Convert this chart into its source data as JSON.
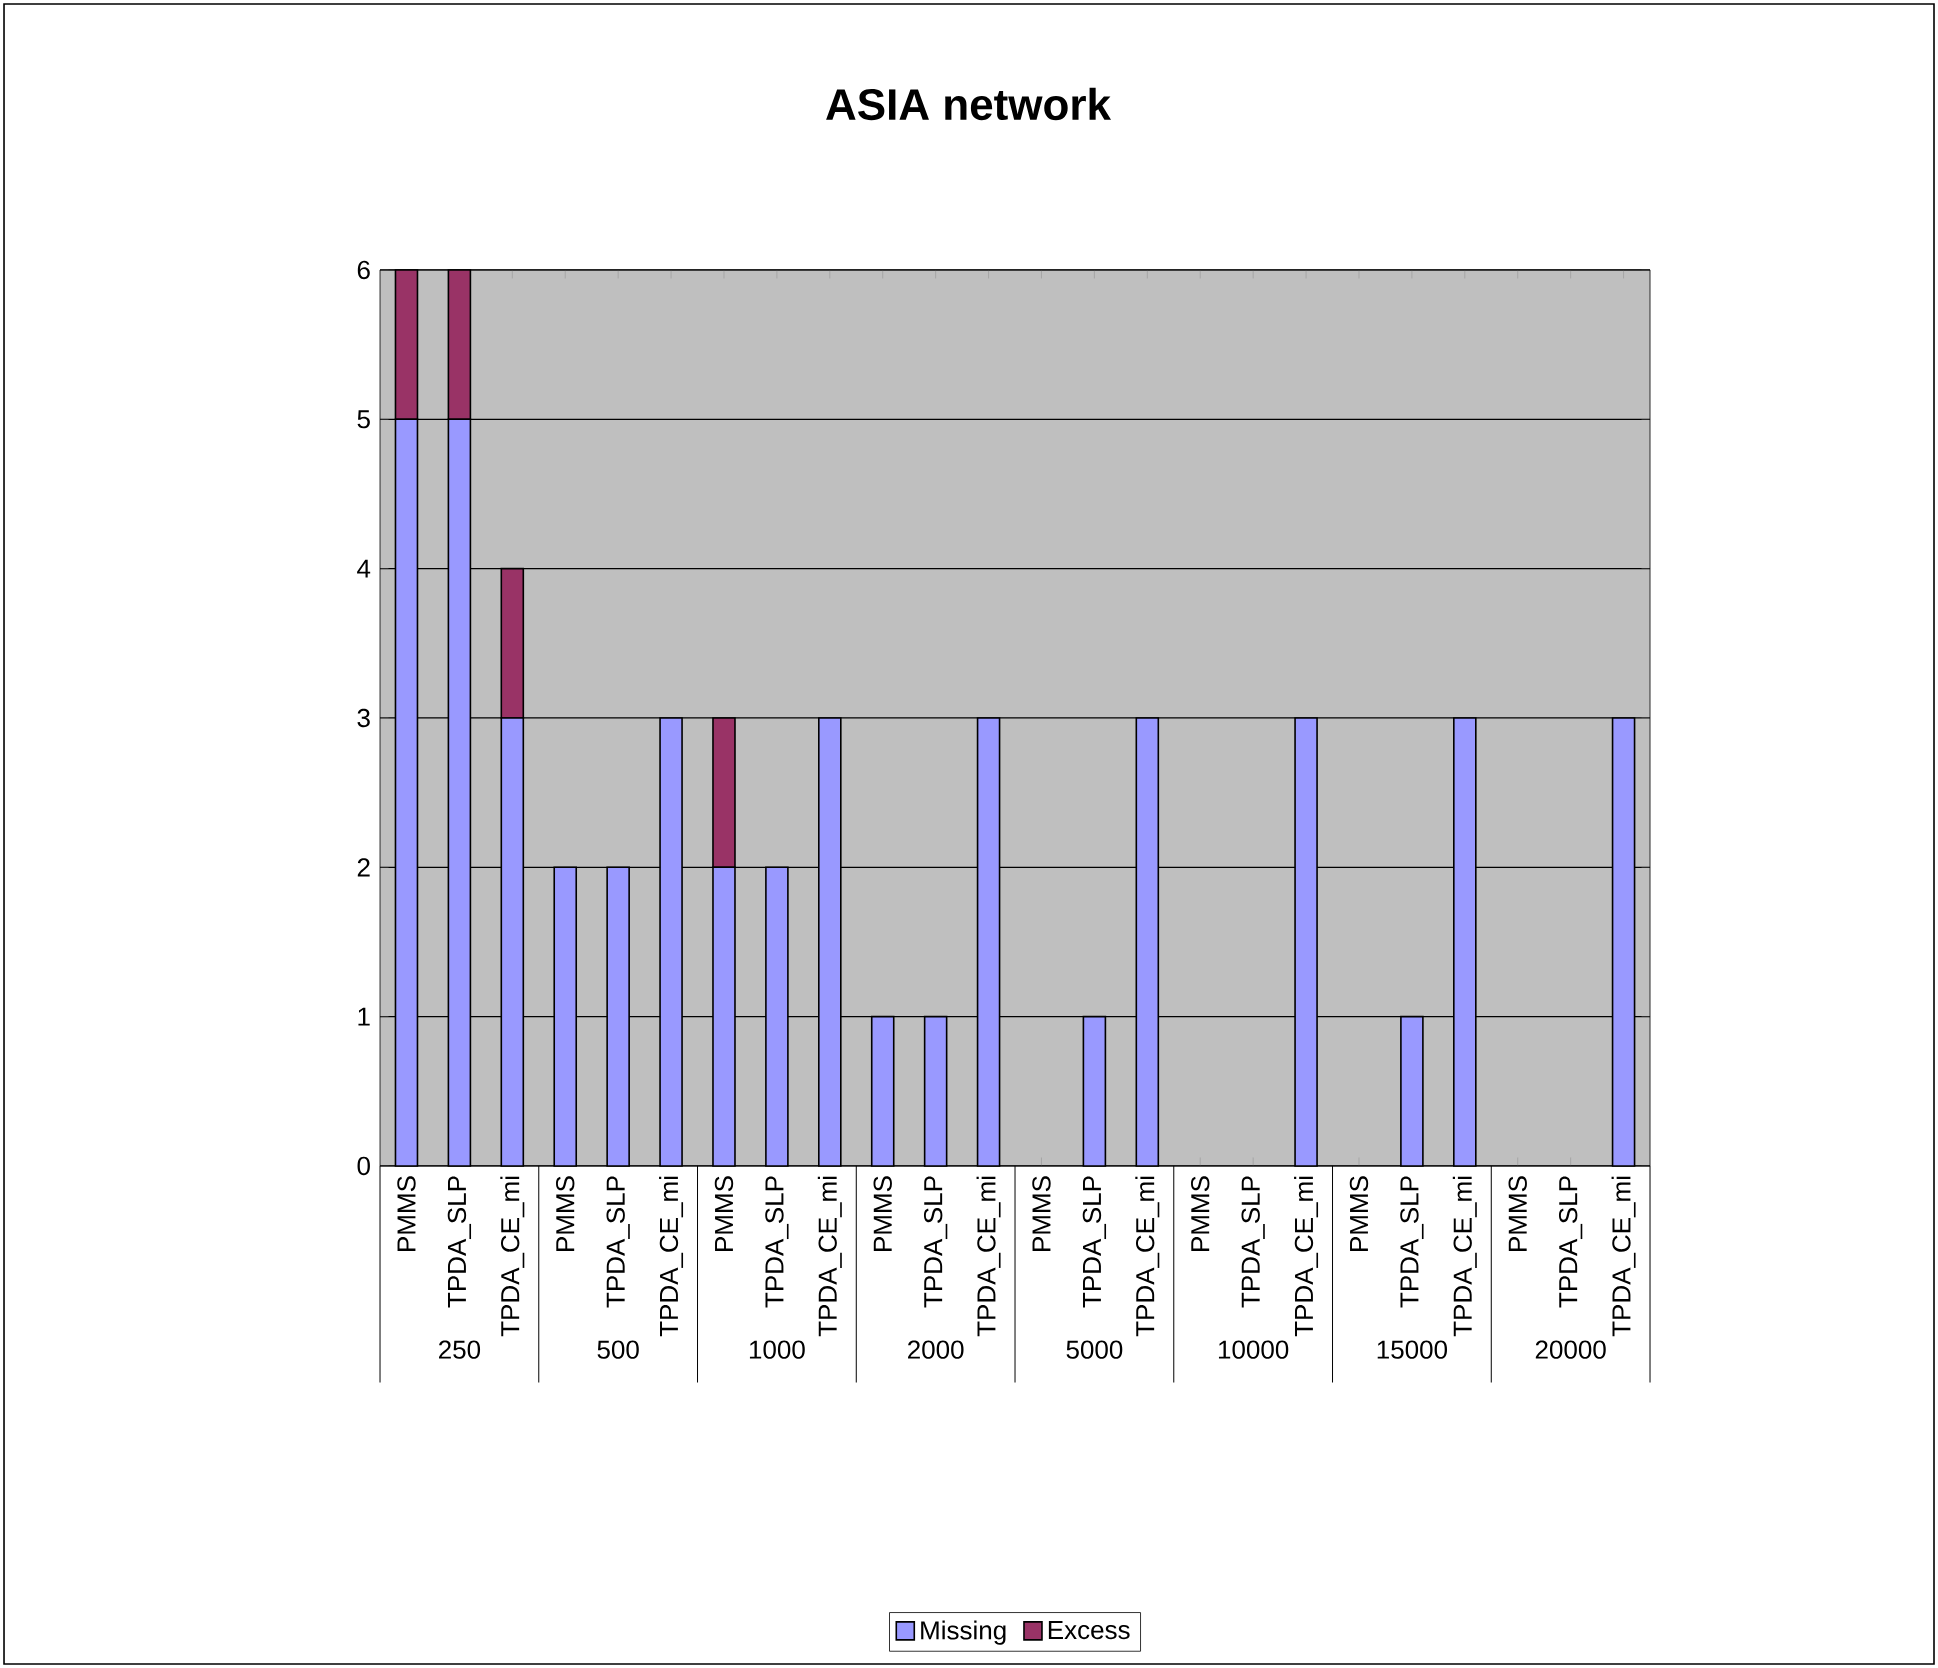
{
  "chart_data": {
    "type": "bar",
    "title": "ASIA network",
    "stacked": true,
    "categories": [
      "PMMS",
      "TPDA_SLP",
      "TPDA_CE_mi",
      "PMMS",
      "TPDA_SLP",
      "TPDA_CE_mi",
      "PMMS",
      "TPDA_SLP",
      "TPDA_CE_mi",
      "PMMS",
      "TPDA_SLP",
      "TPDA_CE_mi",
      "PMMS",
      "TPDA_SLP",
      "TPDA_CE_mi",
      "PMMS",
      "TPDA_SLP",
      "TPDA_CE_mi",
      "PMMS",
      "TPDA_SLP",
      "TPDA_CE_mi",
      "PMMS",
      "TPDA_SLP",
      "TPDA_CE_mi"
    ],
    "series": [
      {
        "name": "Missing",
        "color": "#9999ff",
        "values": [
          5,
          5,
          3,
          2,
          2,
          3,
          2,
          2,
          3,
          1,
          1,
          3,
          0,
          1,
          3,
          0,
          0,
          3,
          0,
          1,
          3,
          0,
          0,
          3
        ]
      },
      {
        "name": "Excess",
        "color": "#993366",
        "values": [
          1,
          1,
          1,
          0,
          0,
          0,
          1,
          0,
          0,
          0,
          0,
          0,
          0,
          0,
          0,
          0,
          0,
          0,
          0,
          0,
          0,
          0,
          0,
          0
        ]
      }
    ],
    "annotations": [
      "250",
      "500",
      "1000",
      "2000",
      "5000",
      "10000",
      "15000",
      "20000"
    ],
    "ylim": [
      0,
      6
    ],
    "yticks": [
      0,
      1,
      2,
      3,
      4,
      5,
      6
    ],
    "grid": "y",
    "legend": "bottom"
  }
}
